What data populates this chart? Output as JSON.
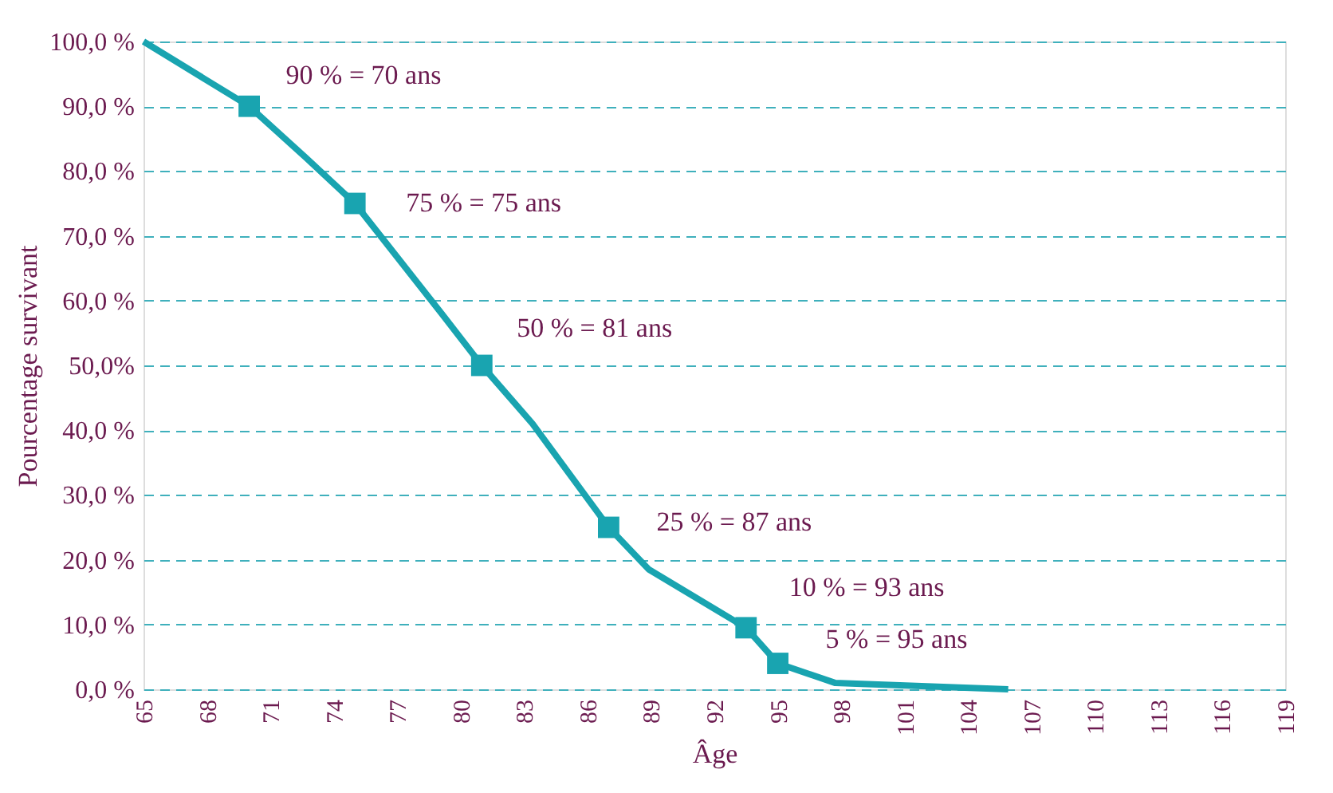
{
  "chart_data": {
    "type": "line",
    "xlabel": "Âge",
    "ylabel": "Pourcentage survivant",
    "xlim": [
      65,
      119
    ],
    "xticks": [
      65,
      68,
      71,
      74,
      77,
      80,
      83,
      86,
      89,
      92,
      95,
      98,
      101,
      104,
      107,
      110,
      113,
      116,
      119
    ],
    "ylim": [
      0,
      100
    ],
    "yticks": [
      {
        "value": 0,
        "label": "0,0 %"
      },
      {
        "value": 10,
        "label": "10,0 %"
      },
      {
        "value": 20,
        "label": "20,0 %"
      },
      {
        "value": 30,
        "label": "30,0 %"
      },
      {
        "value": 40,
        "label": "40,0 %"
      },
      {
        "value": 50,
        "label": "50,0%"
      },
      {
        "value": 60,
        "label": "60,0 %"
      },
      {
        "value": 70,
        "label": "70,0 %"
      },
      {
        "value": 80,
        "label": "80,0 %"
      },
      {
        "value": 90,
        "label": "90,0 %"
      },
      {
        "value": 100,
        "label": "100,0 %"
      }
    ],
    "grid": "y",
    "series": [
      {
        "color": "#19a4b0",
        "marker": "none",
        "x": [
          65,
          70,
          72.7,
          75,
          79.1,
          81,
          83.4,
          87,
          88.9,
          93.5,
          95,
          97.7,
          105.9
        ],
        "values": [
          100,
          90,
          82,
          75,
          58,
          50,
          41,
          25,
          18.5,
          9.5,
          4,
          1,
          0
        ]
      },
      {
        "type": "scatter",
        "color": "#19a4b0",
        "marker": "square",
        "x": [
          70,
          75,
          81,
          87,
          93.5,
          95
        ],
        "values": [
          90,
          75,
          50,
          25,
          9.5,
          4
        ]
      }
    ],
    "annotations": [
      {
        "text": "90 % = 70 ans",
        "x": 70,
        "y": 90
      },
      {
        "text": "75 % = 75 ans",
        "x": 75,
        "y": 75
      },
      {
        "text": "50 % = 81 ans",
        "x": 81,
        "y": 50
      },
      {
        "text": "25 % = 87 ans",
        "x": 87,
        "y": 25
      },
      {
        "text": "10 % = 93 ans",
        "x": 93.5,
        "y": 9.5
      },
      {
        "text": "5 % = 95 ans",
        "x": 95,
        "y": 4
      }
    ]
  }
}
